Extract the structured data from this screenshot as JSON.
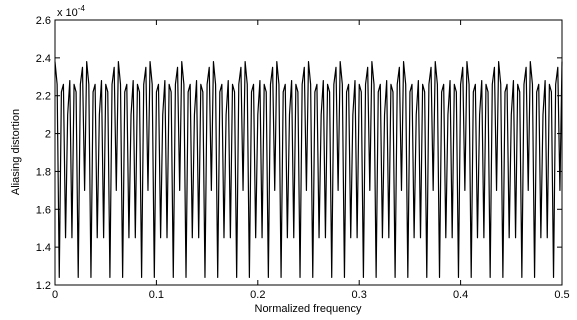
{
  "chart_data": {
    "type": "line",
    "title": "",
    "xlabel": "Normalized frequency",
    "ylabel": "Aliasing distortion",
    "xlim": [
      0,
      0.5
    ],
    "ylim": [
      1.2,
      2.6
    ],
    "y_multiplier": "x 10",
    "y_multiplier_exponent": "-4",
    "x_ticks": [
      "0",
      "0.1",
      "0.2",
      "0.3",
      "0.4",
      "0.5"
    ],
    "x_tick_values": [
      0,
      0.1,
      0.2,
      0.3,
      0.4,
      0.5
    ],
    "y_ticks": [
      "1.2",
      "1.4",
      "1.6",
      "1.8",
      "2",
      "2.2",
      "2.4",
      "2.6"
    ],
    "y_tick_values": [
      1.2,
      1.4,
      1.6,
      1.8,
      2.0,
      2.2,
      2.4,
      2.6
    ],
    "grid": false,
    "legend": "none",
    "line_color": "#000000",
    "series": [
      {
        "values_description_free": true,
        "period": 0.03125,
        "pattern_x": [
          0.0,
          0.0021,
          0.0042,
          0.0063,
          0.0083,
          0.0104,
          0.0125,
          0.0146,
          0.0167,
          0.0188,
          0.0208,
          0.0229,
          0.025,
          0.0271,
          0.0292,
          0.0313
        ],
        "pattern_y": [
          2.38,
          2.26,
          1.24,
          2.22,
          2.26,
          1.45,
          2.1,
          2.28,
          1.45,
          2.26,
          2.22,
          1.24,
          2.26,
          2.35,
          1.7,
          2.38
        ]
      }
    ]
  }
}
